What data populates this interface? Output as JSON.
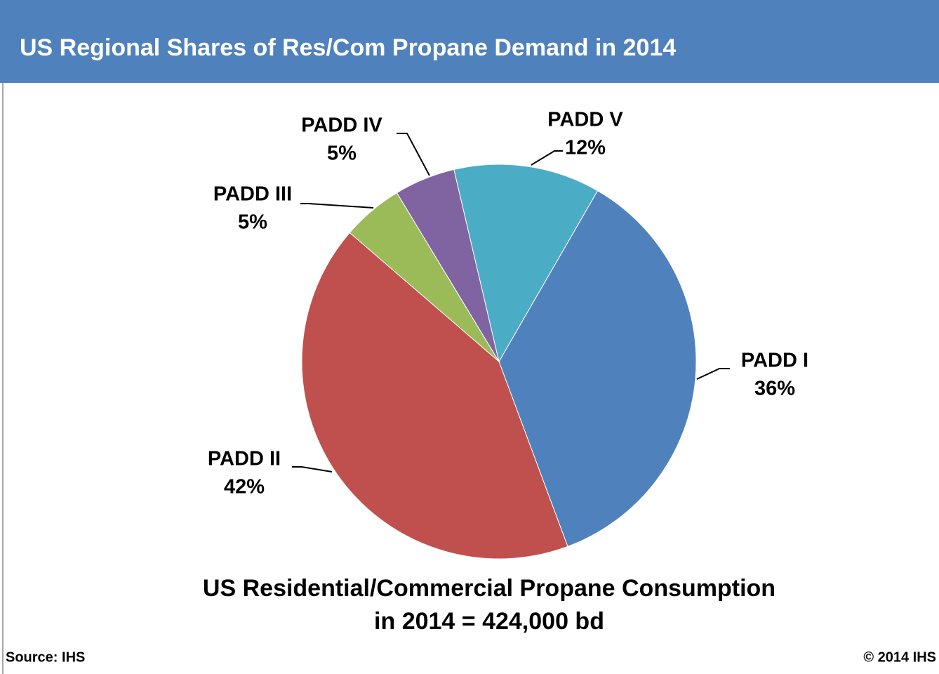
{
  "chart_data": {
    "type": "pie",
    "title": "US Regional Shares of Res/Com Propane Demand in 2014",
    "categories": [
      "PADD I",
      "PADD II",
      "PADD III",
      "PADD IV",
      "PADD V"
    ],
    "values": [
      36,
      42,
      5,
      5,
      12
    ],
    "value_labels": [
      "36%",
      "42%",
      "5%",
      "5%",
      "12%"
    ],
    "colors": [
      "#4f81bd",
      "#c0504d",
      "#9bbb59",
      "#8064a2",
      "#4bacc6"
    ],
    "note": [
      "US Residential/Commercial Propane Consumption",
      "in 2014 = 424,000 bd"
    ],
    "source": "Source: IHS",
    "copyright": "© 2014 IHS"
  }
}
